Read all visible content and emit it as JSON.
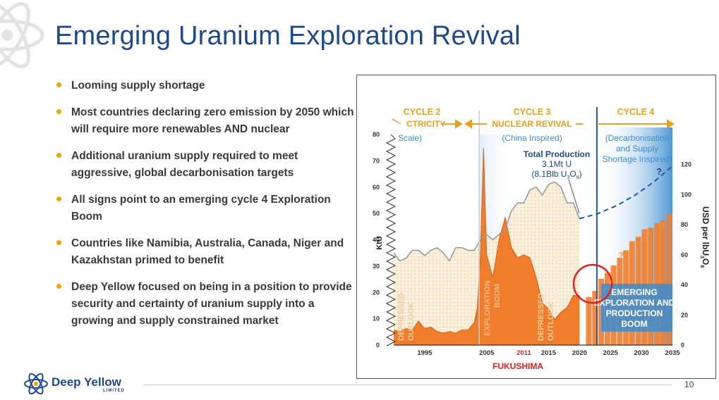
{
  "slide": {
    "title": "Emerging Uranium Exploration Revival",
    "page_number": "10"
  },
  "bullets": [
    {
      "text": "Looming supply shortage"
    },
    {
      "text": "Most countries declaring zero emission by 2050 which will require more renewables AND nuclear"
    },
    {
      "text": "Additional uranium supply required to meet aggressive, global decarbonisation targets"
    },
    {
      "text": "All signs point to an emerging cycle 4 Exploration Boom"
    },
    {
      "text": "Countries like Namibia, Australia, Canada, Niger and Kazakhstan primed to benefit"
    },
    {
      "text": "Deep Yellow focused on being in a position to provide security and certainty of uranium supply into a growing and supply constrained market"
    }
  ],
  "logo": {
    "name": "Deep Yellow",
    "sub": "LIMITED"
  },
  "colors": {
    "title": "#1e4a8c",
    "bullet_dot": "#f0a500",
    "orange": "#ef7d2c",
    "blue": "#3c8dd0",
    "gold": "#e8a020"
  },
  "chart_data": {
    "type": "area",
    "x_ticks": [
      "1995",
      "2005",
      "2011",
      "2015",
      "2020",
      "2025",
      "2030",
      "2035"
    ],
    "x_tick_highlight": "2011",
    "x_range": [
      1990,
      2035
    ],
    "y_left": {
      "label": "KtU",
      "ticks": [
        "0",
        "10",
        "20",
        "30",
        "40",
        "50",
        "60",
        "70",
        "80"
      ],
      "range": [
        0,
        80
      ]
    },
    "y_right": {
      "label_main": "USD per lbU",
      "label_sub1": "3",
      "label_main2": "O",
      "label_sub2": "8",
      "ticks": [
        "0",
        "20",
        "40",
        "60",
        "80",
        "100",
        "120"
      ],
      "range": [
        0,
        140
      ]
    },
    "annotations": {
      "cycle2": "CYCLE 2",
      "cycle2_sub1": "CTRICITY",
      "cycle2_sub2": "Scale)",
      "cycle3": "CYCLE 3",
      "cycle3_sub1": "NUCLEAR REVIVAL",
      "cycle3_sub2": "(China Inspired)",
      "cycle4": "CYCLE 4",
      "cycle4_sub1": "(Decarbonisation",
      "cycle4_sub2": "and Supply",
      "cycle4_sub3": "Shortage Inspired)",
      "total_line1": "Total Production",
      "total_line2": "3.1Mt U",
      "total_line3a": "(8.1Blb U",
      "total_line3b": "3",
      "total_line3c": "O",
      "total_line3d": "8",
      "total_line3e": ")",
      "fukushima": "FUKUSHIMA",
      "depressed": "DEPRESSED",
      "outlook": "OUTLOOK",
      "exploration": "EXPLORATION",
      "boom": "BOOM",
      "emerging1": "EMERGING",
      "emerging2": "EXPLORATION AND",
      "emerging3": "PRODUCTION",
      "emerging4": "BOOM",
      "question": "?"
    },
    "series": [
      {
        "name": "Production",
        "axis": "left",
        "points": [
          [
            1990,
            35
          ],
          [
            1991,
            32
          ],
          [
            1992,
            33
          ],
          [
            1993,
            36
          ],
          [
            1994,
            36
          ],
          [
            1995,
            34
          ],
          [
            1996,
            36
          ],
          [
            1997,
            37
          ],
          [
            1998,
            35
          ],
          [
            1999,
            32
          ],
          [
            2000,
            37
          ],
          [
            2001,
            37
          ],
          [
            2002,
            36
          ],
          [
            2003,
            36
          ],
          [
            2004,
            40
          ],
          [
            2005,
            42
          ],
          [
            2006,
            40
          ],
          [
            2007,
            42
          ],
          [
            2008,
            44
          ],
          [
            2009,
            51
          ],
          [
            2010,
            54
          ],
          [
            2011,
            54
          ],
          [
            2012,
            59
          ],
          [
            2013,
            60
          ],
          [
            2014,
            57
          ],
          [
            2015,
            61
          ],
          [
            2016,
            62
          ],
          [
            2017,
            60
          ],
          [
            2018,
            54
          ],
          [
            2019,
            54
          ],
          [
            2020,
            48
          ]
        ]
      },
      {
        "name": "Production projection",
        "axis": "left",
        "points": [
          [
            2020,
            48
          ],
          [
            2023,
            50
          ],
          [
            2026,
            53
          ],
          [
            2029,
            57
          ],
          [
            2032,
            62
          ],
          [
            2035,
            68
          ]
        ]
      },
      {
        "name": "Exploration expenditure",
        "axis": "right",
        "points": [
          [
            1990,
            10
          ],
          [
            1991,
            9
          ],
          [
            1992,
            11
          ],
          [
            1993,
            10
          ],
          [
            1994,
            16
          ],
          [
            1995,
            11
          ],
          [
            1996,
            12
          ],
          [
            1997,
            9
          ],
          [
            1998,
            8
          ],
          [
            1999,
            9
          ],
          [
            2000,
            8
          ],
          [
            2001,
            10
          ],
          [
            2002,
            10
          ],
          [
            2003,
            15
          ],
          [
            2003.5,
            25
          ],
          [
            2004,
            60
          ],
          [
            2004.5,
            131
          ],
          [
            2005,
            60
          ],
          [
            2006,
            45
          ],
          [
            2007,
            70
          ],
          [
            2008,
            85
          ],
          [
            2009,
            65
          ],
          [
            2010,
            58
          ],
          [
            2011,
            60
          ],
          [
            2012,
            58
          ],
          [
            2013,
            45
          ],
          [
            2014,
            28
          ],
          [
            2015,
            24
          ],
          [
            2016,
            17
          ],
          [
            2017,
            22
          ],
          [
            2018,
            25
          ],
          [
            2019,
            33
          ],
          [
            2020,
            33
          ]
        ]
      }
    ],
    "bars_right": [
      {
        "x": 2021,
        "value": 32
      },
      {
        "x": 2022,
        "value": 36
      },
      {
        "x": 2023,
        "value": 44
      },
      {
        "x": 2024,
        "value": 48
      },
      {
        "x": 2025,
        "value": 53
      },
      {
        "x": 2026,
        "value": 58
      },
      {
        "x": 2027,
        "value": 63
      },
      {
        "x": 2028,
        "value": 69
      },
      {
        "x": 2029,
        "value": 72
      },
      {
        "x": 2030,
        "value": 77
      },
      {
        "x": 2031,
        "value": 78
      },
      {
        "x": 2032,
        "value": 81
      },
      {
        "x": 2033,
        "value": 83
      },
      {
        "x": 2034,
        "value": 87
      }
    ],
    "cycle_divider_year": 2022.8
  }
}
